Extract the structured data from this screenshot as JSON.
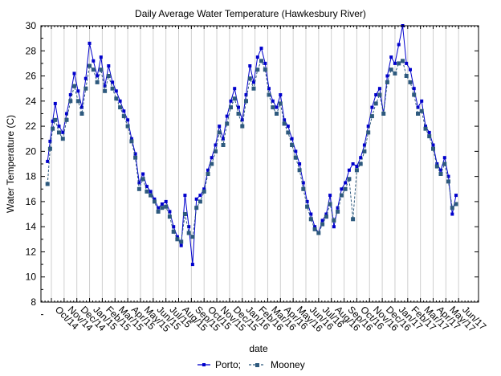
{
  "chart_data": {
    "type": "line",
    "title": "Daily Average Water Temperature (Hawkesbury River)",
    "xlabel": "date",
    "ylabel": "Water Temperature (C)",
    "ylim": [
      8,
      30
    ],
    "yticks": [
      8,
      10,
      12,
      14,
      16,
      18,
      20,
      22,
      24,
      26,
      28,
      30
    ],
    "grid": "vertical monthly",
    "legend_position": "bottom-center",
    "x_tick_labels": [
      "Oct/14",
      "Nov/14",
      "Dec/14",
      "Jan/15",
      "Feb/15",
      "Mar/15",
      "Apr/15",
      "May/15",
      "Jun/15",
      "Jul/15",
      "Aug/15",
      "Sep/15",
      "Oct/15",
      "Nov/15",
      "Dec/15",
      "Jan/16",
      "Feb/16",
      "Mar/16",
      "Apr/16",
      "May/16",
      "Jun/16",
      "Jul/16",
      "Aug/16",
      "Sep/16",
      "Oct/16",
      "Nov/16",
      "Dec/16",
      "Jan/17",
      "Feb/17",
      "Mar/17",
      "Apr/17",
      "May/17",
      "Jun/17"
    ],
    "x_months_from_oct14": [
      -0.3,
      -0.1,
      0.1,
      0.3,
      0.6,
      0.9,
      1.2,
      1.5,
      1.8,
      2.1,
      2.4,
      2.7,
      3.0,
      3.3,
      3.6,
      3.9,
      4.2,
      4.5,
      4.8,
      5.1,
      5.4,
      5.7,
      6.0,
      6.3,
      6.6,
      6.9,
      7.2,
      7.5,
      7.8,
      8.1,
      8.4,
      8.7,
      9.0,
      9.3,
      9.6,
      9.9,
      10.2,
      10.5,
      10.8,
      11.1,
      11.4,
      11.7,
      12.0,
      12.3,
      12.6,
      12.9,
      13.2,
      13.5,
      13.8,
      14.1,
      14.4,
      14.7,
      15.0,
      15.3,
      15.6,
      15.9,
      16.2,
      16.5,
      16.8,
      17.1,
      17.4,
      17.7,
      18.0,
      18.3,
      18.6,
      18.9,
      19.2,
      19.5,
      19.8,
      20.1,
      20.4,
      20.7,
      21.0,
      21.3,
      21.6,
      21.9,
      22.2,
      22.5,
      22.8,
      23.1,
      23.4,
      23.7,
      24.0,
      24.3,
      24.6,
      24.9,
      25.2,
      25.5,
      25.8,
      26.1,
      26.4,
      26.7,
      27.0,
      27.3,
      27.6,
      27.9,
      28.2,
      28.5,
      28.8,
      29.1,
      29.4,
      29.7,
      30.0,
      30.3,
      30.6,
      30.9,
      31.2,
      31.5,
      31.8
    ],
    "series": [
      {
        "name": "Porto;",
        "color": "#0000CC",
        "line_style": "solid",
        "values": [
          19.2,
          20.8,
          22.4,
          23.8,
          22.0,
          21.5,
          23.0,
          24.5,
          26.2,
          24.8,
          23.5,
          25.8,
          28.6,
          27.2,
          26.0,
          27.5,
          25.2,
          26.8,
          25.5,
          24.8,
          24.0,
          23.2,
          22.5,
          21.0,
          19.8,
          17.5,
          18.2,
          17.2,
          16.8,
          16.2,
          15.5,
          15.8,
          16.0,
          15.2,
          14.0,
          13.2,
          12.5,
          16.5,
          14.0,
          11.0,
          16.2,
          16.5,
          17.0,
          18.5,
          19.5,
          20.5,
          22.0,
          21.0,
          22.8,
          24.0,
          25.0,
          23.5,
          22.5,
          24.5,
          26.8,
          25.5,
          27.5,
          28.2,
          27.0,
          25.0,
          24.0,
          23.5,
          24.5,
          22.5,
          22.0,
          21.0,
          20.0,
          19.0,
          17.5,
          16.0,
          15.0,
          14.0,
          13.5,
          14.5,
          15.0,
          16.5,
          14.0,
          15.5,
          17.0,
          17.5,
          18.5,
          19.0,
          18.8,
          19.5,
          20.5,
          22.0,
          23.5,
          24.5,
          25.0,
          23.0,
          26.0,
          27.5,
          27.0,
          28.5,
          30.0,
          27.0,
          26.5,
          25.0,
          23.5,
          24.0,
          22.0,
          21.5,
          20.5,
          19.0,
          18.5,
          19.5,
          18.0,
          15.0,
          16.5
        ]
      },
      {
        "name": "Mooney",
        "color": "#2E5A7E",
        "line_style": "dashed",
        "values": [
          17.4,
          20.2,
          21.8,
          22.5,
          21.5,
          21.0,
          22.5,
          24.0,
          25.2,
          24.0,
          23.0,
          25.0,
          26.8,
          26.5,
          25.5,
          26.5,
          24.8,
          26.0,
          25.0,
          24.2,
          23.5,
          22.8,
          22.0,
          20.8,
          19.5,
          17.0,
          17.8,
          16.8,
          16.5,
          16.0,
          15.2,
          15.5,
          15.6,
          14.8,
          13.6,
          13.0,
          12.8,
          15.0,
          13.5,
          13.2,
          15.5,
          16.0,
          16.8,
          18.2,
          19.0,
          20.0,
          21.5,
          20.5,
          22.2,
          23.5,
          24.2,
          23.0,
          22.0,
          24.0,
          25.8,
          25.0,
          26.5,
          27.2,
          26.5,
          24.5,
          23.5,
          23.0,
          23.8,
          22.2,
          21.5,
          20.5,
          19.5,
          18.5,
          17.0,
          15.6,
          14.6,
          13.8,
          13.5,
          14.2,
          14.8,
          15.8,
          14.5,
          15.2,
          16.5,
          17.0,
          17.8,
          14.6,
          18.5,
          19.0,
          20.0,
          21.5,
          22.8,
          23.8,
          24.5,
          23.0,
          25.5,
          26.5,
          26.2,
          27.0,
          27.2,
          26.0,
          25.5,
          24.5,
          23.0,
          23.2,
          21.8,
          21.2,
          20.2,
          18.8,
          18.2,
          19.0,
          17.6,
          15.5,
          15.8
        ]
      }
    ]
  }
}
